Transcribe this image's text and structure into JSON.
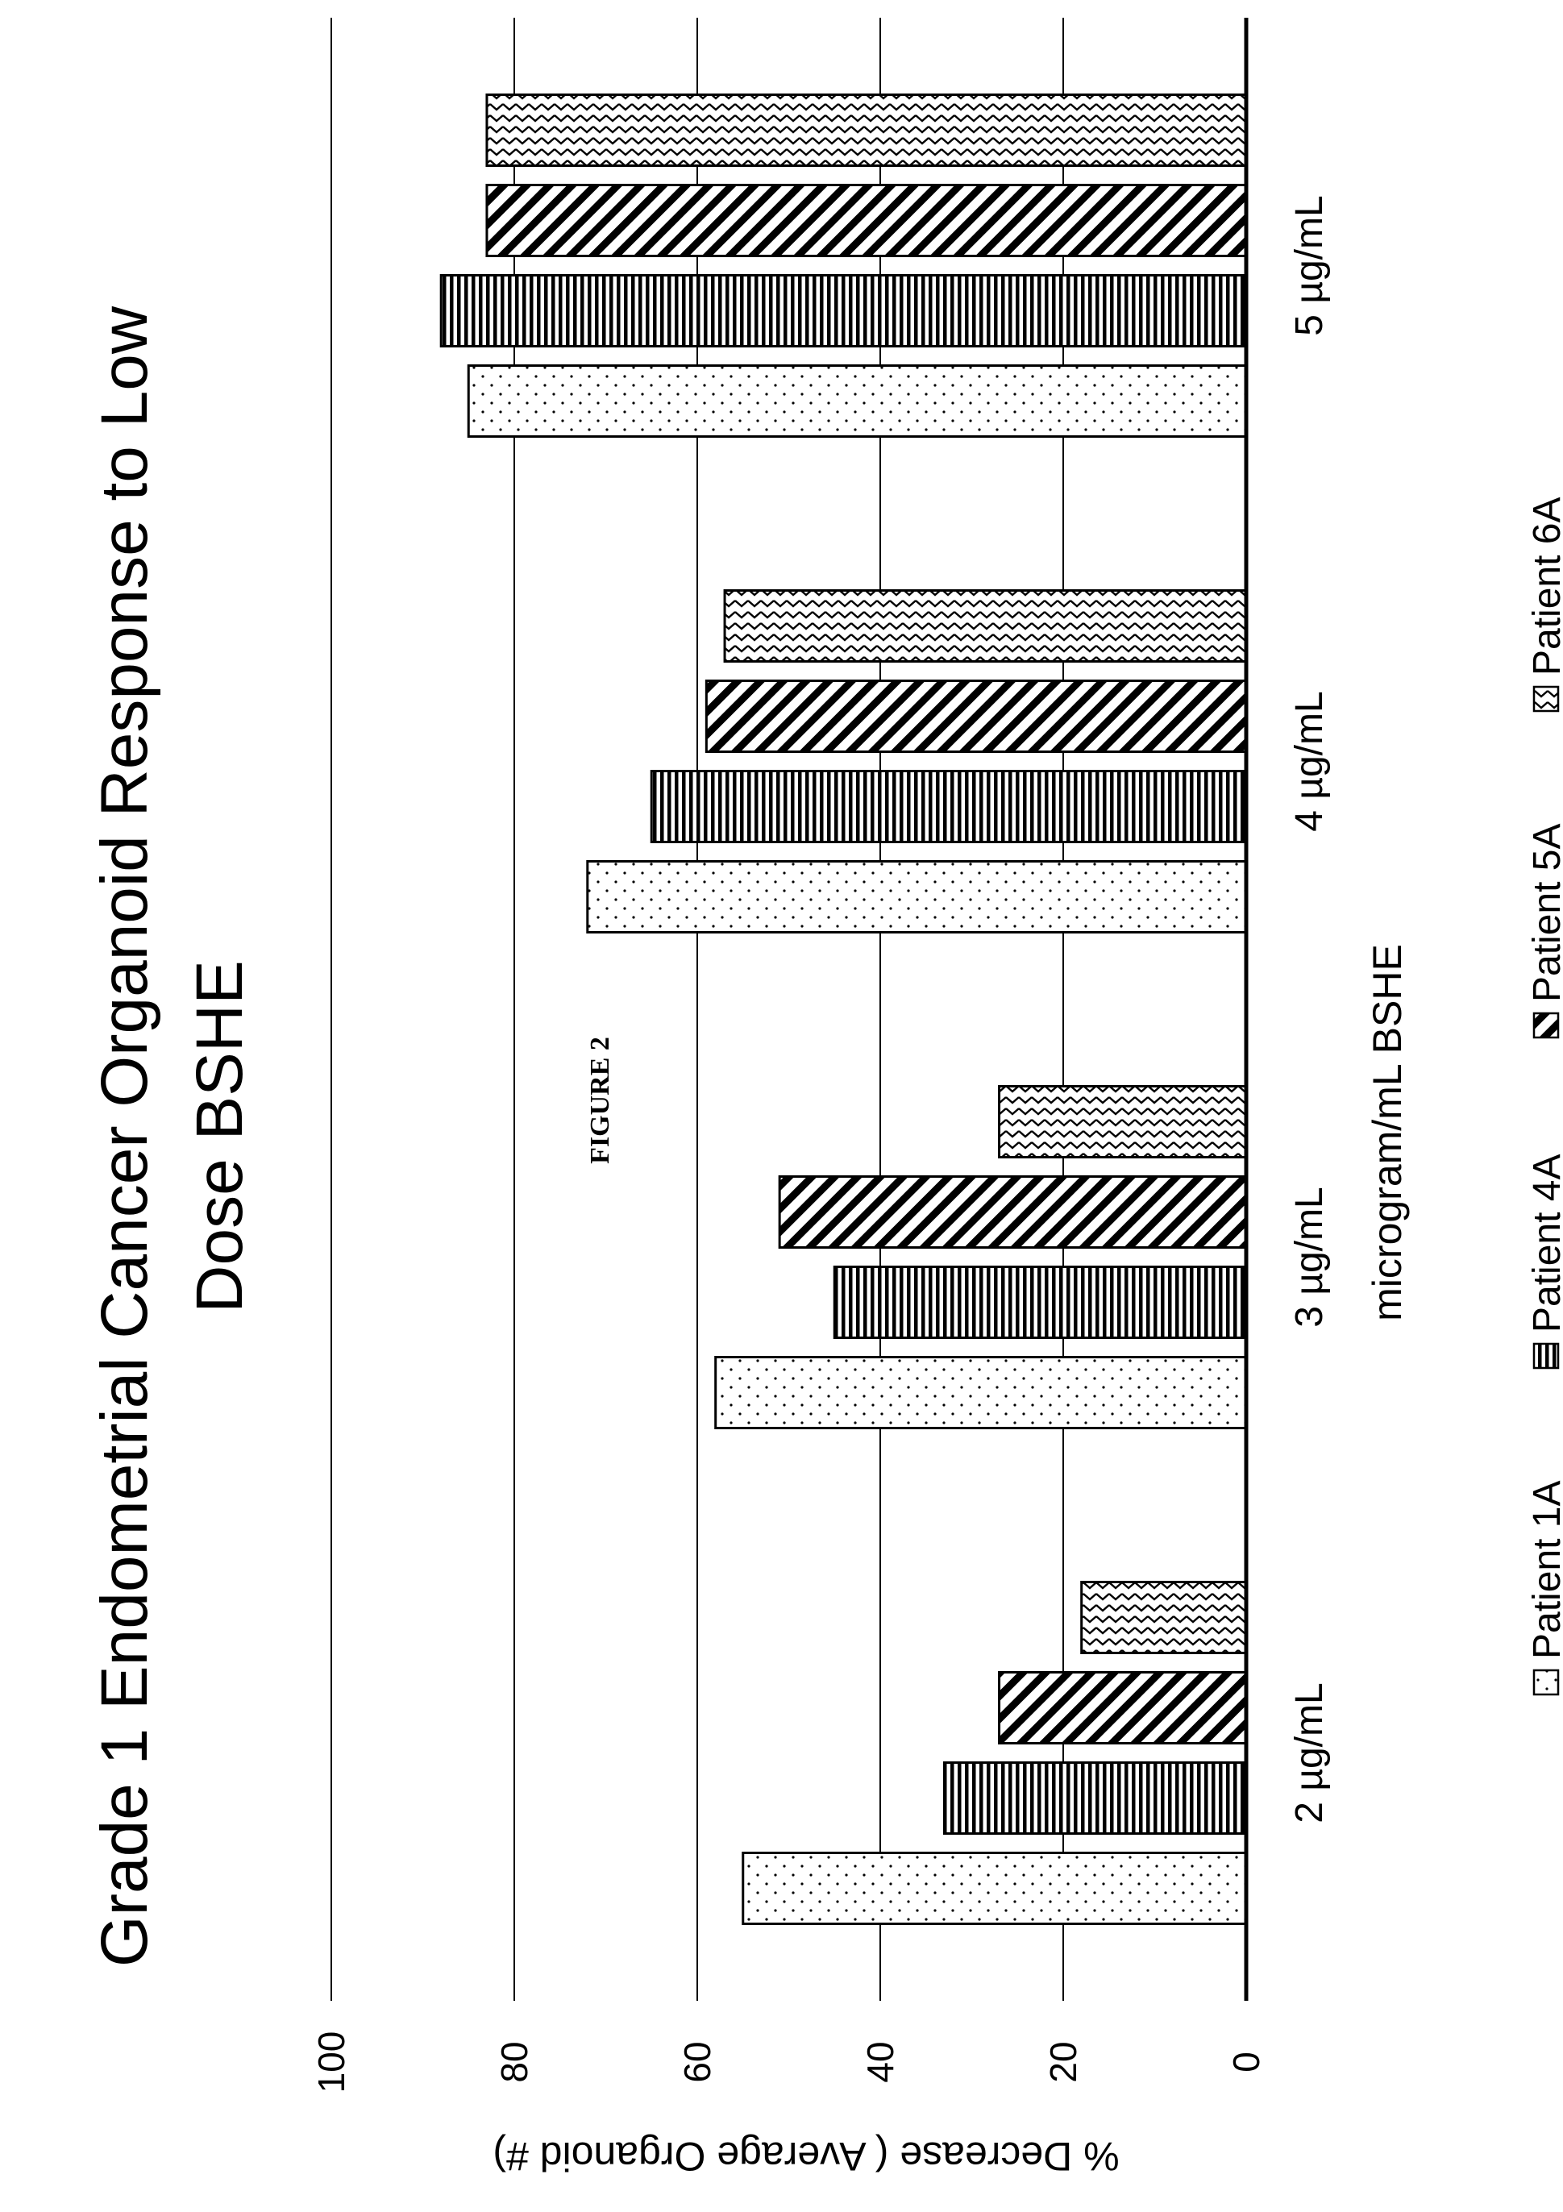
{
  "figure_label": "FIGURE 2",
  "chart_data": {
    "type": "bar",
    "orientation": "vertical (page rotated 90°)",
    "title_lines": [
      "Grade 1 Endometrial Cancer Organoid Response to Low",
      "Dose BSHE"
    ],
    "xlabel": "microgram/mL BSHE",
    "ylabel": "% Decrease ( Average Organoid #)",
    "categories": [
      "2 µg/mL",
      "3 µg/mL",
      "4 µg/mL",
      "5 µg/mL"
    ],
    "ylim": [
      0,
      100
    ],
    "yticks": [
      "0",
      "20",
      "40",
      "60",
      "80",
      "100"
    ],
    "grid": true,
    "legend_position": "bottom",
    "series": [
      {
        "name": "Patient 1A",
        "pattern": "dots",
        "values": [
          55,
          58,
          72,
          85
        ]
      },
      {
        "name": "Patient 4A",
        "pattern": "vertical-stripes",
        "values": [
          33,
          45,
          65,
          88
        ]
      },
      {
        "name": "Patient 5A",
        "pattern": "diagonal-stripes",
        "values": [
          27,
          51,
          59,
          83
        ]
      },
      {
        "name": "Patient 6A",
        "pattern": "zigzag",
        "values": [
          18,
          27,
          57,
          83
        ]
      }
    ]
  }
}
